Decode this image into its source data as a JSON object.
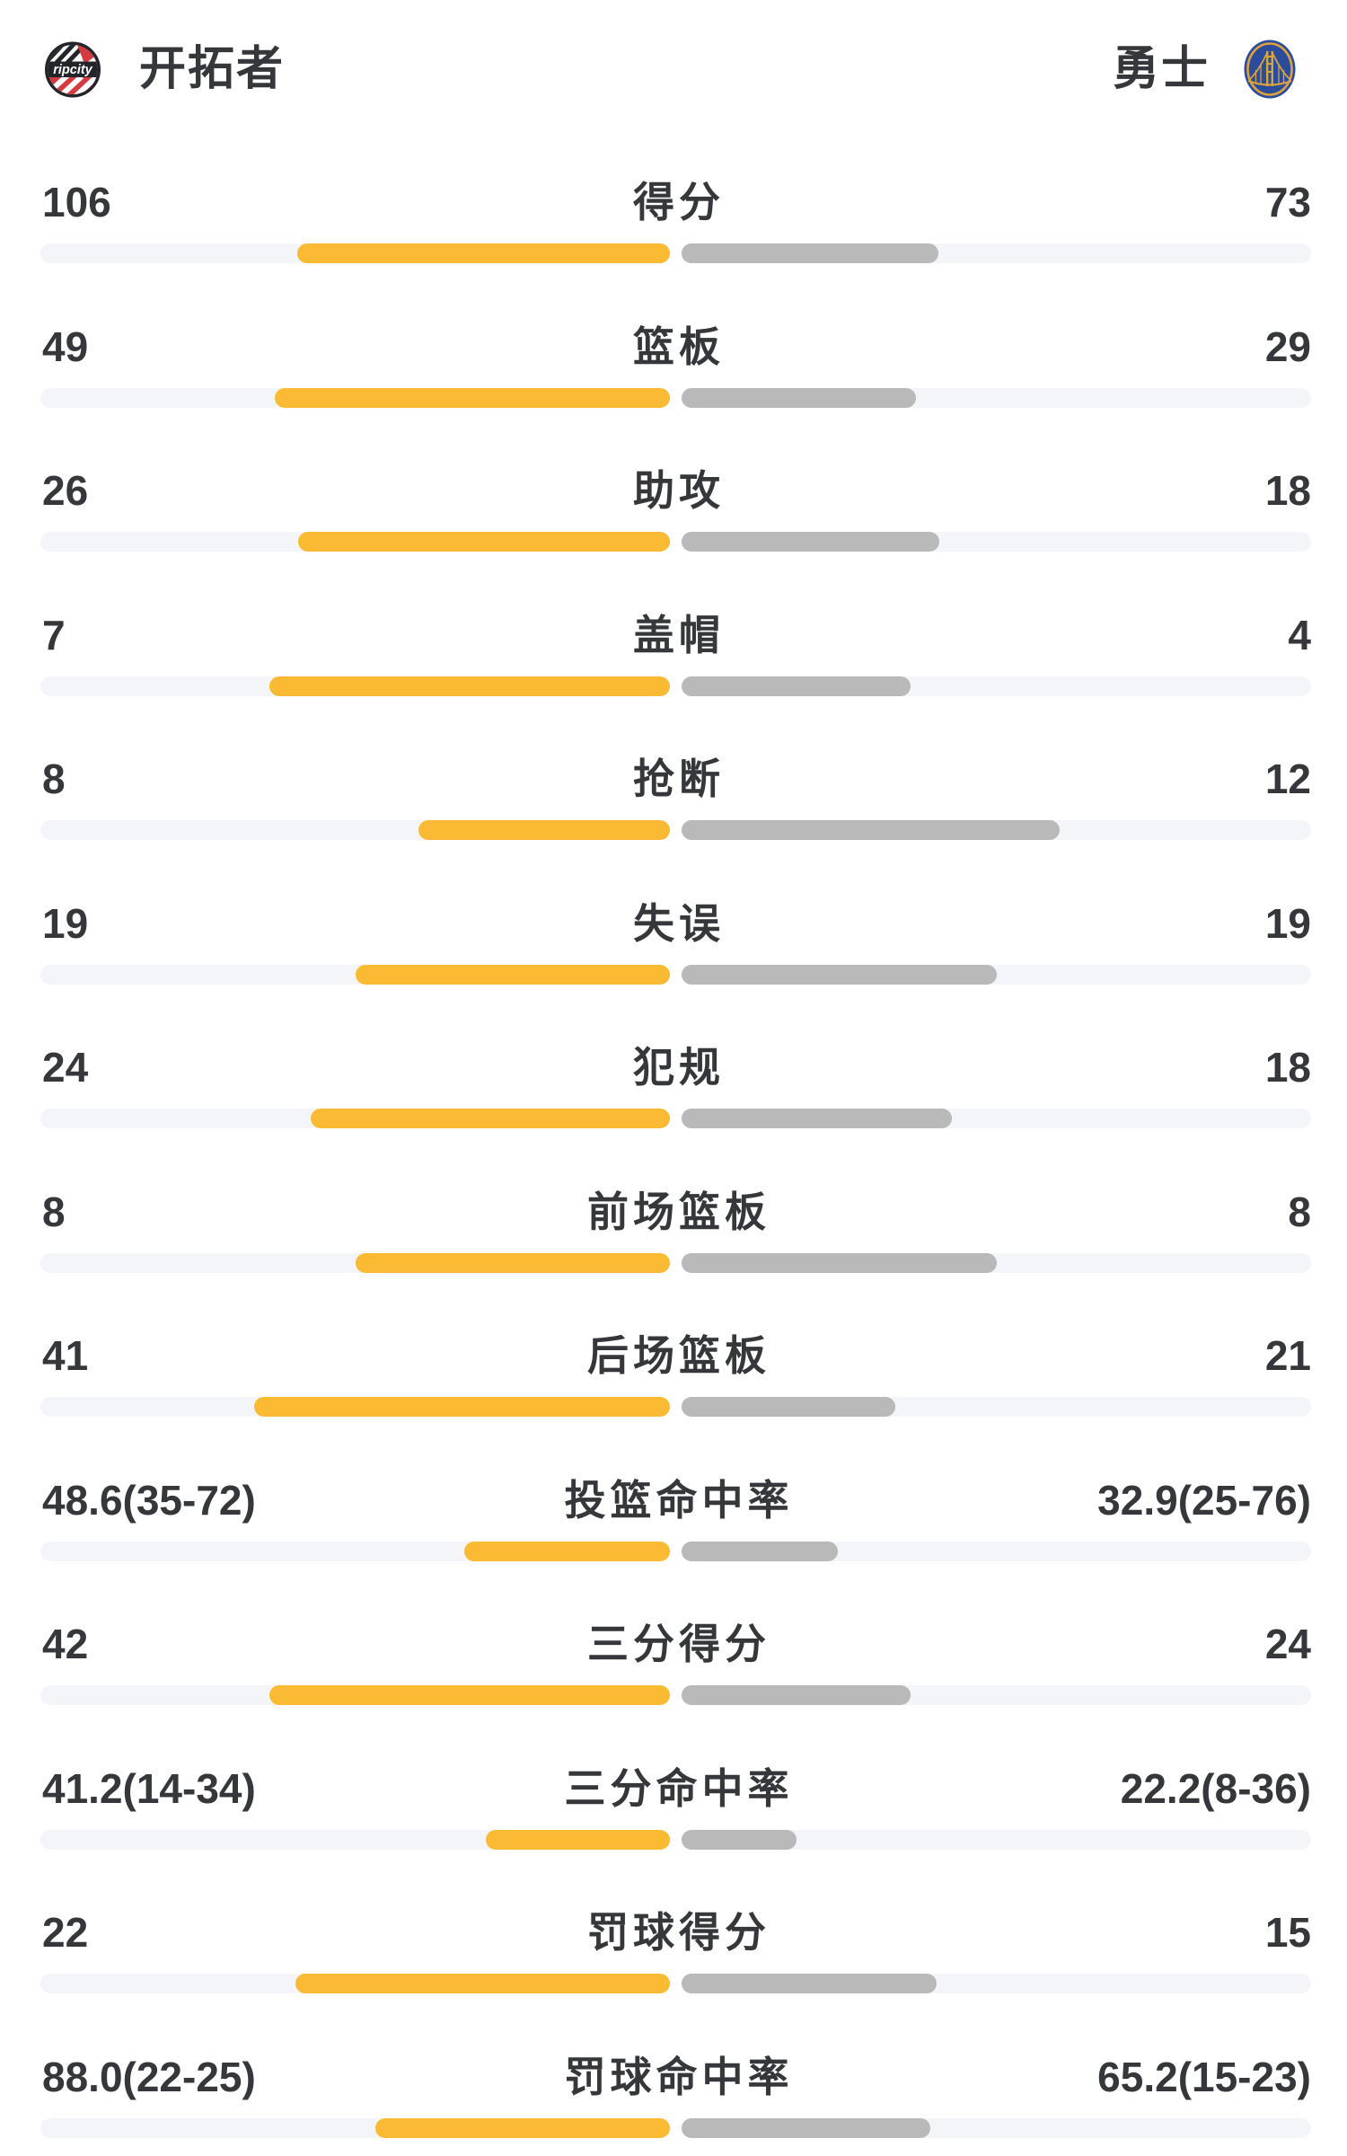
{
  "header": {
    "home": {
      "name": "开拓者",
      "logo": "blazers-ripcity-logo",
      "logo_text": "ripcity"
    },
    "away": {
      "name": "勇士",
      "logo": "warriors-bridge-logo"
    }
  },
  "colors": {
    "home_bar": "#FBBA33",
    "away_bar": "#B9B9B9",
    "bar_track": "#F4F5F8",
    "text": "#36373B",
    "blazers_red": "#D43B40",
    "blazers_black": "#23252B",
    "warriors_navy": "#2B4C9B",
    "warriors_gold": "#DCA23E"
  },
  "chart_data": {
    "type": "bar",
    "orientation": "horizontal-tug-of-war",
    "home_team": "开拓者",
    "away_team": "勇士",
    "bar_rule_count": "fill = value / (home + away)",
    "bar_rule_percent": "fill = pct / (pct + 100)",
    "rows": [
      {
        "label": "得分",
        "type": "count",
        "home": "106",
        "away": "73",
        "home_num": 106,
        "away_num": 73
      },
      {
        "label": "篮板",
        "type": "count",
        "home": "49",
        "away": "29",
        "home_num": 49,
        "away_num": 29
      },
      {
        "label": "助攻",
        "type": "count",
        "home": "26",
        "away": "18",
        "home_num": 26,
        "away_num": 18
      },
      {
        "label": "盖帽",
        "type": "count",
        "home": "7",
        "away": "4",
        "home_num": 7,
        "away_num": 4
      },
      {
        "label": "抢断",
        "type": "count",
        "home": "8",
        "away": "12",
        "home_num": 8,
        "away_num": 12
      },
      {
        "label": "失误",
        "type": "count",
        "home": "19",
        "away": "19",
        "home_num": 19,
        "away_num": 19
      },
      {
        "label": "犯规",
        "type": "count",
        "home": "24",
        "away": "18",
        "home_num": 24,
        "away_num": 18
      },
      {
        "label": "前场篮板",
        "type": "count",
        "home": "8",
        "away": "8",
        "home_num": 8,
        "away_num": 8
      },
      {
        "label": "后场篮板",
        "type": "count",
        "home": "41",
        "away": "21",
        "home_num": 41,
        "away_num": 21
      },
      {
        "label": "投篮命中率",
        "type": "percent",
        "home": "48.6(35-72)",
        "away": "32.9(25-76)",
        "home_num": 48.6,
        "away_num": 32.9
      },
      {
        "label": "三分得分",
        "type": "count",
        "home": "42",
        "away": "24",
        "home_num": 42,
        "away_num": 24
      },
      {
        "label": "三分命中率",
        "type": "percent",
        "home": "41.2(14-34)",
        "away": "22.2(8-36)",
        "home_num": 41.2,
        "away_num": 22.2
      },
      {
        "label": "罚球得分",
        "type": "count",
        "home": "22",
        "away": "15",
        "home_num": 22,
        "away_num": 15
      },
      {
        "label": "罚球命中率",
        "type": "percent",
        "home": "88.0(22-25)",
        "away": "65.2(15-23)",
        "home_num": 88.0,
        "away_num": 65.2
      }
    ]
  }
}
